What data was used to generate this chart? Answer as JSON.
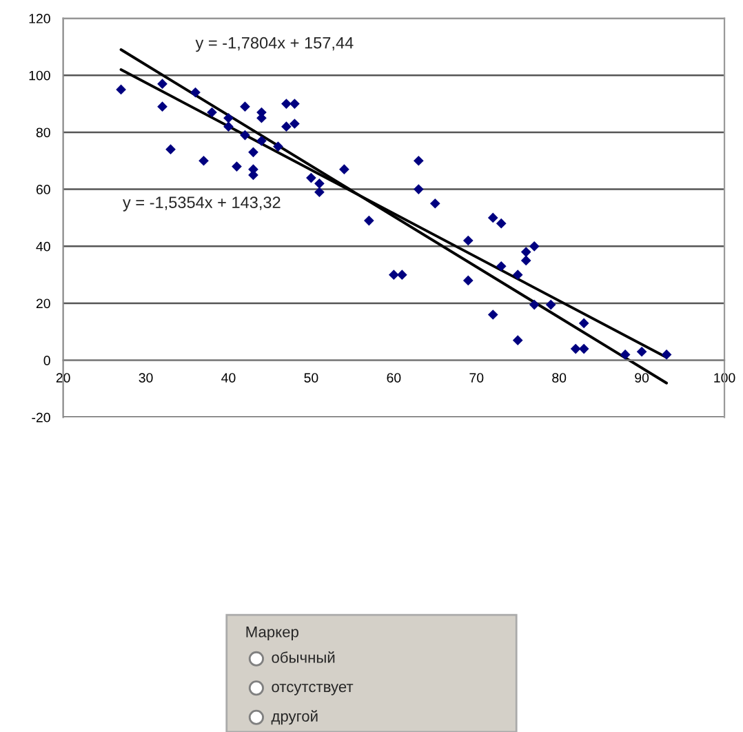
{
  "chart_data": {
    "type": "scatter",
    "xlim": [
      20,
      100
    ],
    "ylim": [
      -20,
      120
    ],
    "xticks": [
      20,
      30,
      40,
      50,
      60,
      70,
      80,
      90,
      100
    ],
    "yticks": [
      -20,
      0,
      20,
      40,
      60,
      80,
      100,
      120
    ],
    "grid": "y",
    "series": [
      {
        "marker": "diamond",
        "color": "#000080",
        "x": [
          27,
          32,
          32,
          33,
          36,
          37,
          38,
          40,
          40,
          41,
          42,
          42,
          43,
          43,
          43,
          44,
          44,
          44,
          46,
          47,
          47,
          48,
          48,
          50,
          51,
          51,
          54,
          57,
          60,
          61,
          63,
          63,
          65,
          69,
          69,
          72,
          72,
          73,
          73,
          75,
          75,
          76,
          76,
          77,
          77,
          79,
          82,
          83,
          83,
          88,
          90,
          93
        ],
        "values": [
          95,
          97,
          89,
          74,
          94,
          70,
          87,
          85,
          82,
          68,
          89,
          79,
          73,
          67,
          65,
          87,
          85,
          77,
          75,
          90,
          82,
          90,
          83,
          64,
          62,
          59,
          67,
          49,
          30,
          30,
          70,
          60,
          55,
          42,
          28,
          50,
          16,
          48,
          33,
          30,
          7,
          38,
          35,
          40,
          19.5,
          19.5,
          4,
          4,
          13,
          2,
          3,
          2
        ]
      },
      {
        "type": "line",
        "color": "#000000",
        "x": [
          27,
          93
        ],
        "values": [
          109,
          -8
        ],
        "marker": "none"
      },
      {
        "type": "line",
        "color": "#000000",
        "x": [
          27,
          93
        ],
        "values": [
          102,
          1
        ],
        "marker": "none"
      }
    ],
    "annotations": [
      "y = -1,7804x + 157,44",
      "y = -1,5354x + 143,32",
      "Маркер",
      "обычный",
      "отсутствует",
      "другой"
    ]
  }
}
